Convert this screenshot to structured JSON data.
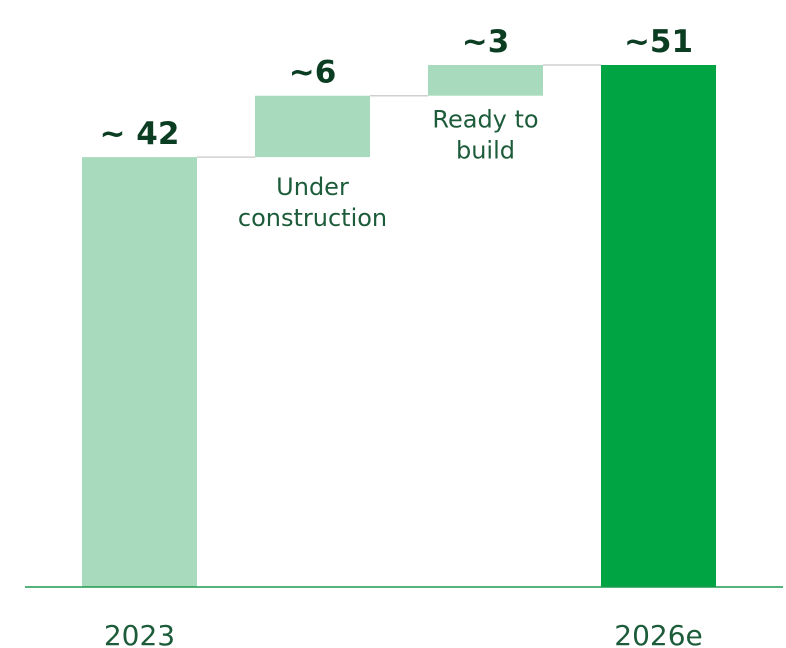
{
  "chart_data": {
    "type": "waterfall",
    "colors": {
      "light": "#a8dbbd",
      "dark": "#00a443",
      "baseline": "#1f9a4f",
      "connector": "#d0d0d0",
      "value_text": "#0b3d22",
      "label_text": "#1d5c3a"
    },
    "ylim": [
      0,
      51
    ],
    "bars": [
      {
        "category": "2023",
        "kind": "total",
        "start": 0,
        "end": 42,
        "value_label": "~ 42",
        "step_label": [],
        "color": "light"
      },
      {
        "category": "",
        "kind": "step",
        "start": 42,
        "end": 48,
        "value_label": "~6",
        "step_label": [
          "Under",
          "construction"
        ],
        "step_label_position": "below",
        "color": "light"
      },
      {
        "category": "",
        "kind": "step",
        "start": 48,
        "end": 51,
        "value_label": "~3",
        "step_label": [
          "Ready to",
          "build"
        ],
        "step_label_position": "inside",
        "color": "light"
      },
      {
        "category": "2026e",
        "kind": "total",
        "start": 0,
        "end": 51,
        "value_label": "~51",
        "step_label": [],
        "color": "dark"
      }
    ]
  }
}
